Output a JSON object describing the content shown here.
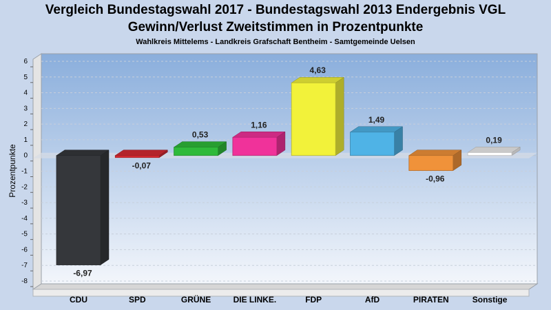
{
  "header": {
    "title_line1": "Vergleich Bundestagswahl 2017 - Bundestagswahl 2013 Endergebnis VGL",
    "title_line2": "Gewinn/Verlust Zweitstimmen in Prozentpunkte",
    "subtitle": "Wahlkreis Mittelems - Landkreis Grafschaft Bentheim - Samtgemeinde Uelsen"
  },
  "chart_data": {
    "type": "bar",
    "title": "Vergleich Bundestagswahl 2017 - Bundestagswahl 2013 Endergebnis VGL",
    "subtitle": "Gewinn/Verlust Zweitstimmen in Prozentpunkte",
    "xlabel": "",
    "ylabel": "Prozentpunkte",
    "ylim": [
      -8,
      6
    ],
    "yticks": [
      6,
      5,
      4,
      3,
      2,
      1,
      0,
      -1,
      -2,
      -3,
      -4,
      -5,
      -6,
      -7,
      -8
    ],
    "grid": true,
    "legend": "none",
    "categories": [
      "CDU",
      "SPD",
      "GRÜNE",
      "DIE LINKE.",
      "FDP",
      "AfD",
      "PIRATEN",
      "Sonstige"
    ],
    "values": [
      -6.97,
      -0.07,
      0.53,
      1.16,
      4.63,
      1.49,
      -0.96,
      0.19
    ],
    "data_labels": [
      "-6,97",
      "-0,07",
      "0,53",
      "1,16",
      "4,63",
      "1,49",
      "-0,96",
      "0,19"
    ],
    "colors": [
      "#35373b",
      "#d42a32",
      "#2fba3a",
      "#f0329a",
      "#f2f23a",
      "#4fb3e6",
      "#f0923a",
      "#ffffff"
    ]
  }
}
